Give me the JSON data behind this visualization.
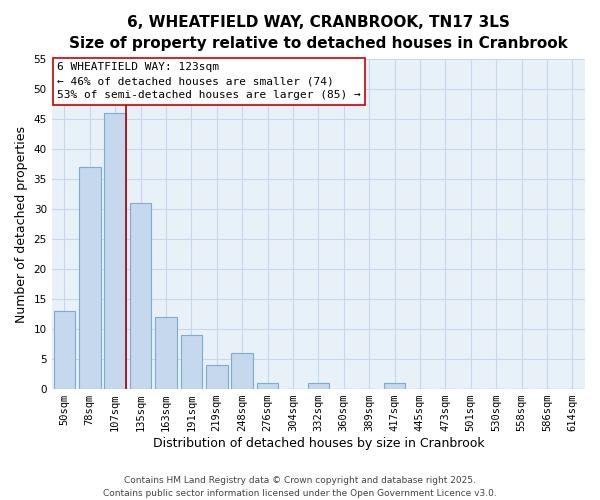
{
  "title": "6, WHEATFIELD WAY, CRANBROOK, TN17 3LS",
  "subtitle": "Size of property relative to detached houses in Cranbrook",
  "xlabel": "Distribution of detached houses by size in Cranbrook",
  "ylabel": "Number of detached properties",
  "bar_labels": [
    "50sqm",
    "78sqm",
    "107sqm",
    "135sqm",
    "163sqm",
    "191sqm",
    "219sqm",
    "248sqm",
    "276sqm",
    "304sqm",
    "332sqm",
    "360sqm",
    "389sqm",
    "417sqm",
    "445sqm",
    "473sqm",
    "501sqm",
    "530sqm",
    "558sqm",
    "586sqm",
    "614sqm"
  ],
  "bar_values": [
    13,
    37,
    46,
    31,
    12,
    9,
    4,
    6,
    1,
    0,
    1,
    0,
    0,
    1,
    0,
    0,
    0,
    0,
    0,
    0,
    0
  ],
  "bar_color": "#c5d8ee",
  "bar_edge_color": "#7badd4",
  "vline_x_index": 2,
  "vline_color": "#aa0000",
  "ylim": [
    0,
    55
  ],
  "yticks": [
    0,
    5,
    10,
    15,
    20,
    25,
    30,
    35,
    40,
    45,
    50,
    55
  ],
  "annotation_title": "6 WHEATFIELD WAY: 123sqm",
  "annotation_line1": "← 46% of detached houses are smaller (74)",
  "annotation_line2": "53% of semi-detached houses are larger (85) →",
  "footer_line1": "Contains HM Land Registry data © Crown copyright and database right 2025.",
  "footer_line2": "Contains public sector information licensed under the Open Government Licence v3.0.",
  "background_color": "#ffffff",
  "plot_bg_color": "#e8f0f8",
  "grid_color": "#c8d8ec",
  "title_fontsize": 11,
  "subtitle_fontsize": 9.5,
  "axis_label_fontsize": 9,
  "tick_fontsize": 7.5,
  "annotation_fontsize": 8,
  "footer_fontsize": 6.5
}
